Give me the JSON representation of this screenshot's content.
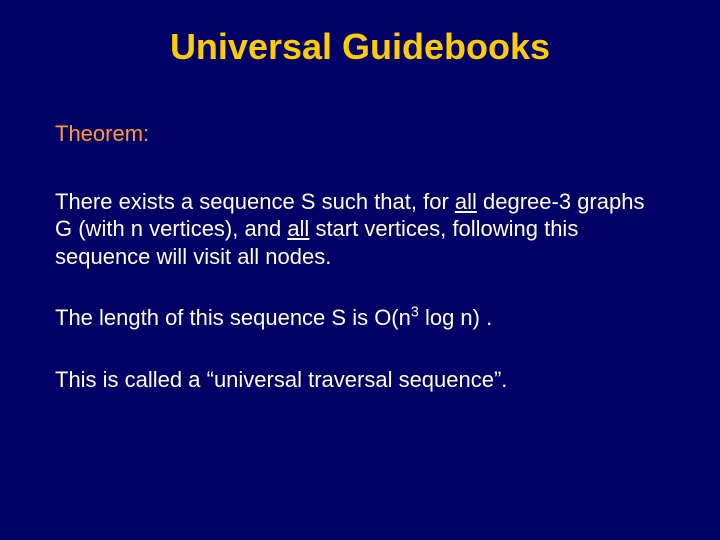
{
  "colors": {
    "background": "#000066",
    "title": "#ffcc00",
    "heading": "#ff9933",
    "body": "#fefed6"
  },
  "title": "Universal Guidebooks",
  "theorem_label": "Theorem:",
  "p1_a": "There exists a sequence S such that, for ",
  "p1_all1": "all",
  "p1_b": " degree-3 graphs G (with n vertices), and ",
  "p1_all2": "all",
  "p1_c": " start vertices, following this sequence will visit all nodes.",
  "p2_a": "The length of this sequence S is O(n",
  "p2_exp": "3",
  "p2_b": " log n) .",
  "p3": "This is called a “universal traversal sequence”."
}
